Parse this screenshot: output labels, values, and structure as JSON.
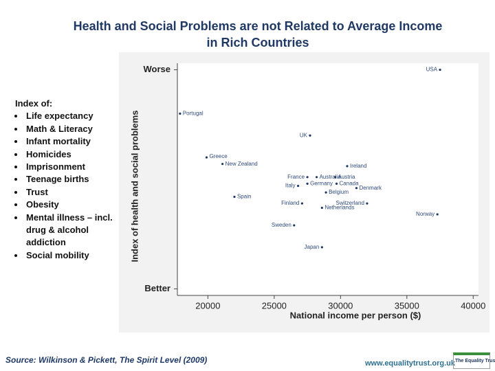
{
  "chart_data": {
    "type": "scatter",
    "title": "Health and Social Problems are not Related to Average Income in Rich Countries",
    "xlabel": "National income per person ($)",
    "ylabel": "Index of health and social problems",
    "labels": [
      "USA",
      "Portugal",
      "UK",
      "Greece",
      "New Zealand",
      "Ireland",
      "France",
      "Australia",
      "Austria",
      "Italy",
      "Germany",
      "Canada",
      "Denmark",
      "Spain",
      "Belgium",
      "Finland",
      "Switzerland",
      "Netherlands",
      "Norway",
      "Sweden",
      "Japan"
    ],
    "x": [
      37500,
      17900,
      27700,
      19900,
      21100,
      30500,
      27500,
      28200,
      29600,
      26800,
      27500,
      29700,
      31200,
      22000,
      28900,
      27100,
      32000,
      28600,
      37300,
      26500,
      28600
    ],
    "y": [
      10.0,
      8.0,
      7.0,
      6.0,
      5.7,
      5.6,
      5.1,
      5.1,
      5.1,
      4.7,
      4.8,
      4.8,
      4.6,
      4.2,
      4.4,
      3.9,
      3.9,
      3.7,
      3.4,
      2.9,
      1.9
    ],
    "color": "#1f3864",
    "xlim": [
      17700,
      40400
    ],
    "xticks": [
      20000,
      25000,
      30000,
      35000,
      40000
    ],
    "ylim": [
      -0.3,
      10.3
    ],
    "yticks": [
      {
        "value": 0,
        "label": "Better"
      },
      {
        "value": 10,
        "label": "Worse"
      }
    ]
  },
  "index_list": {
    "heading": "Index of:",
    "items": [
      "Life expectancy",
      "Math & Literacy",
      "Infant mortality",
      "Homicides",
      "Imprisonment",
      "Teenage births",
      "Trust",
      "Obesity",
      "Mental illness – incl. drug & alcohol addiction",
      "Social mobility"
    ]
  },
  "source": "Source: Wilkinson & Pickett, The Spirit Level (2009)",
  "url": "www.equalitytrust.org.uk",
  "logo": "The Equality Trust"
}
